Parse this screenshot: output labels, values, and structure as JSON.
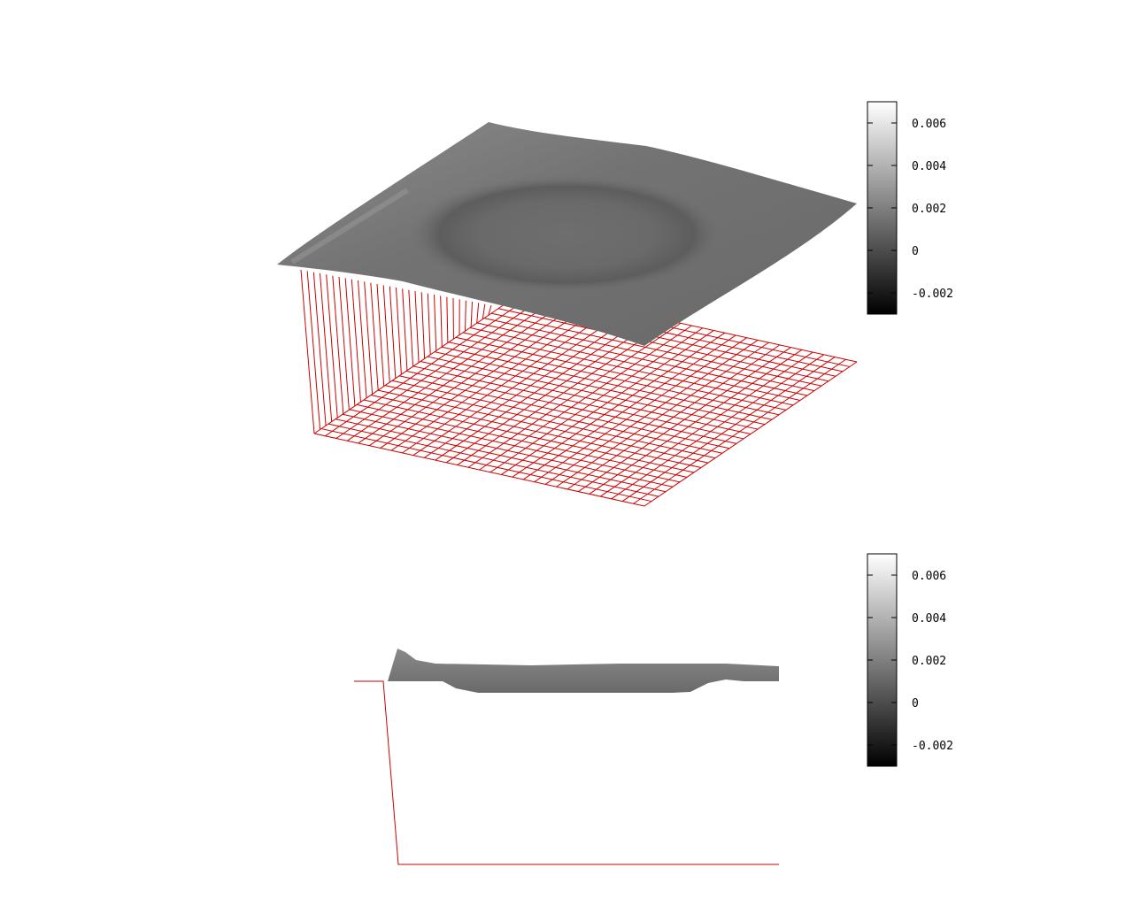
{
  "chart_data": [
    {
      "type": "surface",
      "view": "oblique",
      "title": "",
      "xlabel": "",
      "ylabel": "",
      "zlabel": "",
      "mesh_color": "#cc0000",
      "surface_colormap": "gray",
      "colorbar": {
        "range": [
          -0.003,
          0.007
        ],
        "ticks": [
          -0.002,
          0,
          0.002,
          0.004,
          0.006
        ],
        "tick_labels": [
          "-0.002",
          "0",
          "0.002",
          "0.004",
          "0.006"
        ],
        "placement": "right"
      },
      "surface_shape": "shallow central depression with raised edges",
      "grid_mesh": "flat red base mesh below surface"
    },
    {
      "type": "surface",
      "view": "side",
      "title": "",
      "xlabel": "",
      "ylabel": "",
      "zlabel": "",
      "mesh_color": "#cc0000",
      "surface_colormap": "gray",
      "colorbar": {
        "range": [
          -0.003,
          0.007
        ],
        "ticks": [
          -0.002,
          0,
          0.002,
          0.004,
          0.006
        ],
        "tick_labels": [
          "-0.002",
          "0",
          "0.002",
          "0.004",
          "0.006"
        ],
        "placement": "right"
      },
      "surface_shape": "thin band with peak at left edge and central dip",
      "grid_mesh": "red outline drawn in profile"
    }
  ]
}
